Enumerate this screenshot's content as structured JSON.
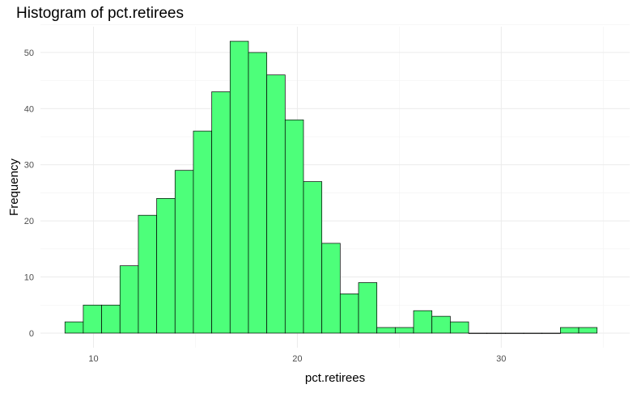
{
  "chart_data": {
    "type": "bar",
    "title": "Histogram of pct.retirees",
    "xlabel": "pct.retirees",
    "ylabel": "Frequency",
    "bin_width": 0.9,
    "bin_start": 8.6,
    "values": [
      2,
      5,
      5,
      12,
      21,
      24,
      29,
      36,
      43,
      52,
      50,
      46,
      38,
      27,
      16,
      7,
      9,
      1,
      1,
      4,
      3,
      2,
      0,
      0,
      0,
      0,
      0,
      1,
      1
    ],
    "xlim": [
      7.4,
      36.3
    ],
    "ylim": [
      -2.6,
      54.6
    ],
    "x_ticks": [
      10,
      20,
      30
    ],
    "y_ticks": [
      0,
      10,
      20,
      30,
      40,
      50
    ],
    "grid": true,
    "bar_fill": "#4DFF7A",
    "bar_stroke": "#000000"
  }
}
